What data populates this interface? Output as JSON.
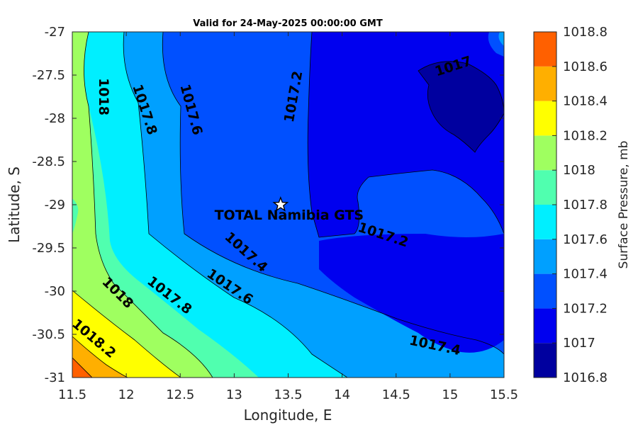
{
  "chart_data": {
    "type": "contour",
    "title": "Valid for 24-May-2025 00:00:00 GMT",
    "xlabel": "Longitude, E",
    "ylabel": "Latitude, S",
    "xlim": [
      11.5,
      15.5
    ],
    "ylim": [
      -31,
      -27
    ],
    "xticks": [
      "11.5",
      "12",
      "12.5",
      "13",
      "13.5",
      "14",
      "14.5",
      "15",
      "15.5"
    ],
    "yticks": [
      "-27",
      "-27.5",
      "-28",
      "-28.5",
      "-29",
      "-29.5",
      "-30",
      "-30.5",
      "-31"
    ],
    "colorbar": {
      "label": "Surface Pressure, mb",
      "levels": [
        "1016.8",
        "1017",
        "1017.2",
        "1017.4",
        "1017.6",
        "1017.8",
        "1018",
        "1018.2",
        "1018.4",
        "1018.6",
        "1018.8"
      ],
      "colors": [
        "#00009f",
        "#0000ef",
        "#0050ff",
        "#00a0ff",
        "#00efff",
        "#50ffaf",
        "#9fff60",
        "#ffff00",
        "#ffaf00",
        "#ff6000",
        "#ff0000"
      ]
    },
    "contour_labels": [
      {
        "text": "1018",
        "lon": 11.79,
        "lat": -27.75,
        "angle": 90
      },
      {
        "text": "1017.8",
        "lon": 12.17,
        "lat": -27.9,
        "angle": 72
      },
      {
        "text": "1017.6",
        "lon": 12.6,
        "lat": -27.9,
        "angle": 75
      },
      {
        "text": "1017.2",
        "lon": 13.55,
        "lat": -27.75,
        "angle": -80
      },
      {
        "text": "1017",
        "lon": 15.03,
        "lat": -27.4,
        "angle": -18
      },
      {
        "text": "1017.4",
        "lon": 13.11,
        "lat": -29.55,
        "angle": 42
      },
      {
        "text": "1017.2",
        "lon": 14.38,
        "lat": -29.35,
        "angle": 18
      },
      {
        "text": "1017.6",
        "lon": 12.96,
        "lat": -29.95,
        "angle": 34
      },
      {
        "text": "1017.8",
        "lon": 12.4,
        "lat": -30.05,
        "angle": 38
      },
      {
        "text": "1018",
        "lon": 11.92,
        "lat": -30.02,
        "angle": 45
      },
      {
        "text": "1018.2",
        "lon": 11.7,
        "lat": -30.55,
        "angle": 40
      },
      {
        "text": "1017.4",
        "lon": 14.86,
        "lat": -30.63,
        "angle": 12
      }
    ],
    "site": {
      "label": "TOTAL Namibia GTS",
      "lon": 13.43,
      "lat": -29.0
    }
  }
}
